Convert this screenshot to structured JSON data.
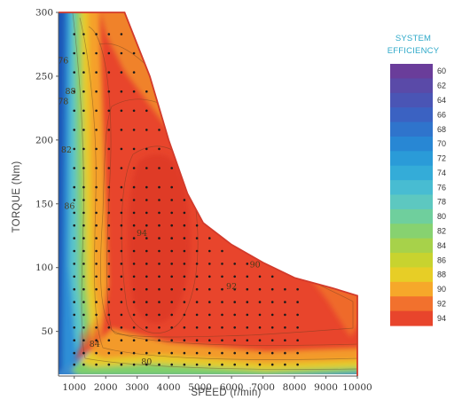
{
  "chart_data": {
    "type": "heatmap",
    "subtype": "efficiency-contour-map",
    "title": "",
    "xlabel": "SPEED (r/min)",
    "ylabel": "TORQUE (Nm)",
    "xlim": [
      500,
      10000
    ],
    "ylim": [
      15,
      300
    ],
    "xticks": [
      1000,
      2000,
      3000,
      4000,
      5000,
      6000,
      7000,
      8000,
      9000,
      10000
    ],
    "xtick_labels": [
      "1000",
      "2000",
      "3000",
      "4000",
      "5000",
      "6000",
      "7000",
      "8000",
      "9000",
      "10000"
    ],
    "yticks": [
      50,
      100,
      150,
      200,
      250,
      300
    ],
    "ytick_labels": [
      "50",
      "100",
      "150",
      "200",
      "250",
      "300"
    ],
    "max_torque_envelope": [
      [
        500,
        300
      ],
      [
        2600,
        300
      ],
      [
        3400,
        250
      ],
      [
        4000,
        200
      ],
      [
        4600,
        158
      ],
      [
        5100,
        135
      ],
      [
        6000,
        118
      ],
      [
        7000,
        104
      ],
      [
        8000,
        92
      ],
      [
        9200,
        84
      ],
      [
        10000,
        78
      ]
    ],
    "contour_labels": [
      {
        "text": "76",
        "x": 650,
        "y": 260
      },
      {
        "text": "78",
        "x": 650,
        "y": 228
      },
      {
        "text": "88",
        "x": 880,
        "y": 236
      },
      {
        "text": "82",
        "x": 750,
        "y": 190
      },
      {
        "text": "86",
        "x": 850,
        "y": 146
      },
      {
        "text": "94",
        "x": 3150,
        "y": 125
      },
      {
        "text": "90",
        "x": 6750,
        "y": 100
      },
      {
        "text": "92",
        "x": 6000,
        "y": 83
      },
      {
        "text": "84",
        "x": 1650,
        "y": 38
      },
      {
        "text": "80",
        "x": 3300,
        "y": 24
      }
    ],
    "legend": {
      "title_lines": [
        "SYSTEM",
        "EFFICIENCY"
      ],
      "ticks": [
        "60",
        "62",
        "64",
        "66",
        "68",
        "70",
        "72",
        "74",
        "76",
        "78",
        "80",
        "82",
        "84",
        "86",
        "88",
        "90",
        "92",
        "94"
      ],
      "colors": [
        "#6a3d9a",
        "#5a4aa8",
        "#4a55b5",
        "#3b62c2",
        "#2f74cc",
        "#2887d4",
        "#2a9bd8",
        "#34acd8",
        "#48bcd2",
        "#5dc8c0",
        "#6fcf9d",
        "#87d270",
        "#a7d24a",
        "#c8d32f",
        "#e7ce26",
        "#f6a82a",
        "#f2712d",
        "#e8452c"
      ],
      "placement": "right"
    },
    "color_scale": {
      "low": "#1f3f9a",
      "mid": "#eecb2a",
      "high": "#e8452c"
    },
    "measurement_grid": {
      "x": [
        1000,
        1300,
        1700,
        2100,
        2500,
        2900,
        3300,
        3700,
        4100,
        4500,
        4900,
        5300,
        5700,
        6100,
        6500,
        6900,
        7300,
        7700,
        8100
      ],
      "y": [
        24,
        33,
        43,
        53,
        63,
        73,
        83,
        93,
        103,
        113,
        123,
        133,
        143,
        153,
        163,
        178,
        193,
        208,
        223,
        238,
        253,
        268,
        283
      ]
    }
  }
}
